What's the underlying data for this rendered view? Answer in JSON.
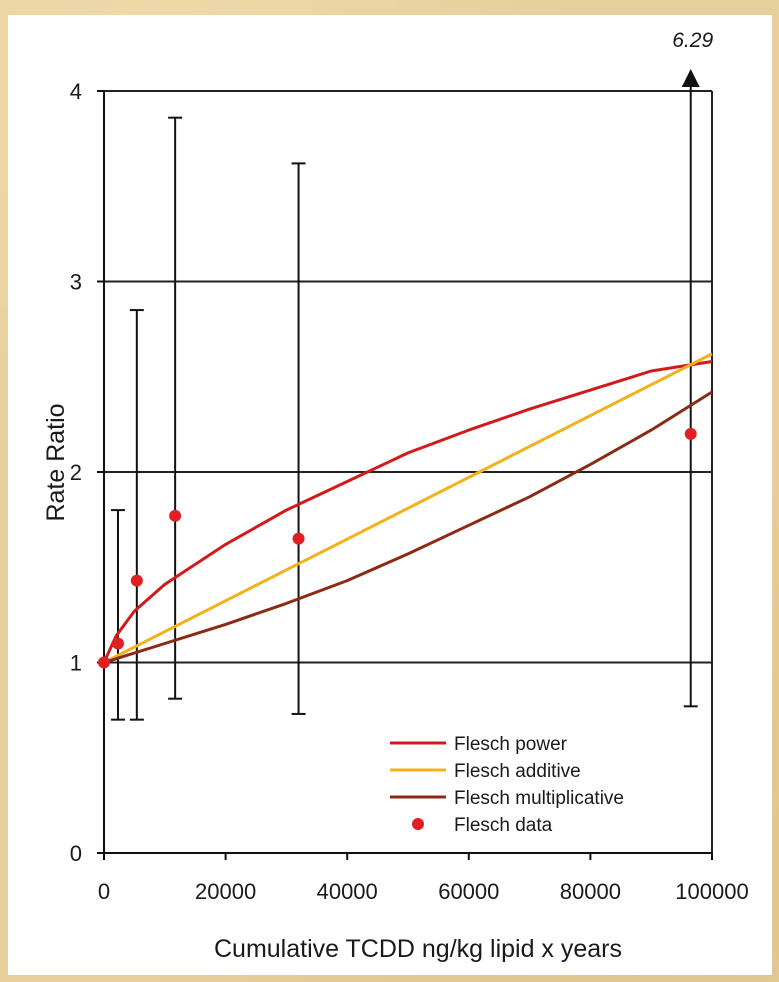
{
  "chart_data": {
    "type": "line",
    "xlabel": "Cumulative TCDD ng/kg lipid x years",
    "ylabel": "Rate Ratio",
    "xlim": [
      0,
      100000
    ],
    "ylim": [
      0,
      4
    ],
    "x_ticks": [
      0,
      20000,
      40000,
      60000,
      80000,
      100000
    ],
    "x_tick_labels": [
      "0",
      "20000",
      "40000",
      "60000",
      "80000",
      "100000"
    ],
    "y_ticks": [
      0,
      1,
      2,
      3,
      4
    ],
    "y_tick_labels": [
      "0",
      "1",
      "2",
      "3",
      "4"
    ],
    "grid": "horizontal",
    "legend_position": "bottom-right",
    "series": [
      {
        "name": "Flesch power",
        "kind": "line",
        "color": "#d21a1a",
        "x": [
          0,
          2000,
          5000,
          10000,
          20000,
          30000,
          40000,
          50000,
          60000,
          70000,
          80000,
          90000,
          100000
        ],
        "y": [
          1.0,
          1.14,
          1.27,
          1.41,
          1.62,
          1.8,
          1.95,
          2.1,
          2.22,
          2.33,
          2.43,
          2.53,
          2.58
        ]
      },
      {
        "name": "Flesch additive",
        "kind": "line",
        "color": "#f2b21c",
        "x": [
          0,
          100000
        ],
        "y": [
          1.0,
          2.62
        ]
      },
      {
        "name": "Flesch multiplicative",
        "kind": "line",
        "color": "#8b2a15",
        "x": [
          0,
          10000,
          20000,
          30000,
          40000,
          50000,
          60000,
          70000,
          80000,
          90000,
          100000
        ],
        "y": [
          1.0,
          1.1,
          1.2,
          1.31,
          1.43,
          1.57,
          1.72,
          1.87,
          2.04,
          2.22,
          2.42
        ]
      },
      {
        "name": "Flesch data",
        "kind": "scatter",
        "color": "#e02020",
        "points": [
          {
            "x": 0,
            "y": 1.0,
            "lo": 1.0,
            "hi": 1.0
          },
          {
            "x": 2300,
            "y": 1.1,
            "lo": 0.7,
            "hi": 1.8
          },
          {
            "x": 5400,
            "y": 1.43,
            "lo": 0.7,
            "hi": 2.85
          },
          {
            "x": 11700,
            "y": 1.77,
            "lo": 0.81,
            "hi": 3.86
          },
          {
            "x": 32000,
            "y": 1.65,
            "lo": 0.73,
            "hi": 3.62
          },
          {
            "x": 96500,
            "y": 2.2,
            "lo": 0.77,
            "hi": 6.29
          }
        ]
      }
    ],
    "annotations": [
      {
        "text": "6.29",
        "x": 96500,
        "note": "upper CI off-scale"
      }
    ]
  }
}
